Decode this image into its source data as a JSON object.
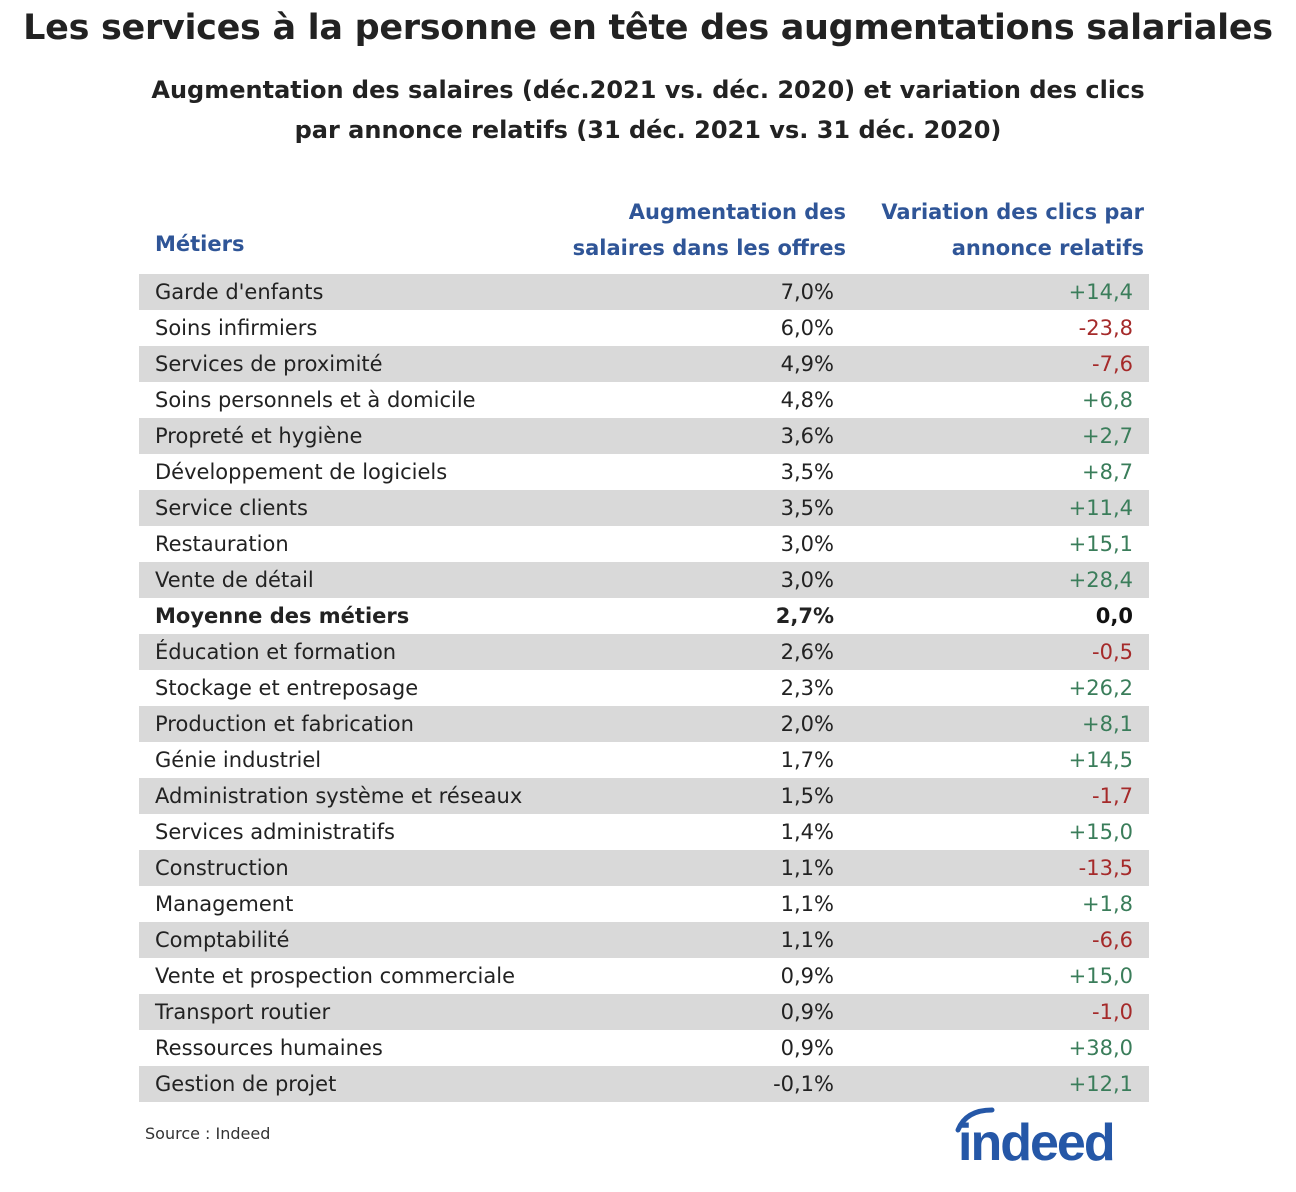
{
  "title": "Les services à la personne en tête des augmentations salariales",
  "subtitle_line1": "Augmentation des salaires (déc.2021 vs. déc. 2020) et variation des clics",
  "subtitle_line2": "par annonce relatifs (31 déc. 2021 vs. 31 déc. 2020)",
  "header": {
    "job": "Métiers",
    "salary_line1": "Augmentation des",
    "salary_line2": "salaires dans les offres",
    "clicks_line1": "Variation des clics par",
    "clicks_line2": "annonce relatifs"
  },
  "source": "Source : Indeed",
  "logo_text": "indeed",
  "colors": {
    "header_blue": "#2f5597",
    "positive": "#3a7d5a",
    "negative": "#a52a2a",
    "row_shade": "#d9d9d9",
    "logo_blue": "#2557a7"
  },
  "chart_data": {
    "type": "table",
    "columns": [
      "Métiers",
      "Augmentation des salaires dans les offres",
      "Variation des clics par annonce relatifs"
    ],
    "rows": [
      {
        "job": "Garde d'enfants",
        "salary": "7,0%",
        "clicks": "+14,4"
      },
      {
        "job": "Soins infirmiers",
        "salary": "6,0%",
        "clicks": "-23,8"
      },
      {
        "job": "Services de proximité",
        "salary": "4,9%",
        "clicks": "-7,6"
      },
      {
        "job": "Soins personnels et à domicile",
        "salary": "4,8%",
        "clicks": "+6,8"
      },
      {
        "job": "Propreté et hygiène",
        "salary": "3,6%",
        "clicks": "+2,7"
      },
      {
        "job": "Développement de logiciels",
        "salary": "3,5%",
        "clicks": "+8,7"
      },
      {
        "job": "Service clients",
        "salary": "3,5%",
        "clicks": "+11,4"
      },
      {
        "job": "Restauration",
        "salary": "3,0%",
        "clicks": "+15,1"
      },
      {
        "job": "Vente de détail",
        "salary": "3,0%",
        "clicks": "+28,4"
      },
      {
        "job": "Moyenne des métiers",
        "salary": "2,7%",
        "clicks": "0,0",
        "bold": true
      },
      {
        "job": "Éducation et formation",
        "salary": "2,6%",
        "clicks": "-0,5"
      },
      {
        "job": "Stockage et entreposage",
        "salary": "2,3%",
        "clicks": "+26,2"
      },
      {
        "job": "Production et fabrication",
        "salary": "2,0%",
        "clicks": "+8,1"
      },
      {
        "job": "Génie industriel",
        "salary": "1,7%",
        "clicks": "+14,5"
      },
      {
        "job": "Administration système et réseaux",
        "salary": "1,5%",
        "clicks": "-1,7"
      },
      {
        "job": "Services administratifs",
        "salary": "1,4%",
        "clicks": "+15,0"
      },
      {
        "job": "Construction",
        "salary": "1,1%",
        "clicks": "-13,5"
      },
      {
        "job": "Management",
        "salary": "1,1%",
        "clicks": "+1,8"
      },
      {
        "job": "Comptabilité",
        "salary": "1,1%",
        "clicks": "-6,6"
      },
      {
        "job": "Vente et prospection commerciale",
        "salary": "0,9%",
        "clicks": "+15,0"
      },
      {
        "job": "Transport routier",
        "salary": "0,9%",
        "clicks": "-1,0"
      },
      {
        "job": "Ressources humaines",
        "salary": "0,9%",
        "clicks": "+38,0"
      },
      {
        "job": "Gestion de projet",
        "salary": "-0,1%",
        "clicks": "+12,1"
      }
    ]
  }
}
